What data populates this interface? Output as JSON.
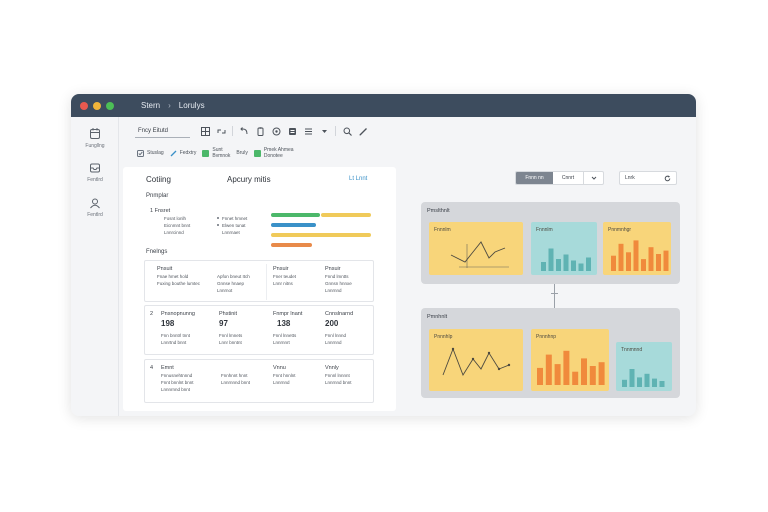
{
  "titlebar": {
    "dots": [
      "#e8594f",
      "#f0b43a",
      "#4cbf56"
    ],
    "crumb_1": "Stern",
    "crumb_sep": "›",
    "crumb_2": "Lorulys"
  },
  "sidebar": {
    "items": [
      {
        "icon": "calendar-icon",
        "label": "Fungllng"
      },
      {
        "icon": "inbox-icon",
        "label": "Fentlrd"
      },
      {
        "icon": "user-icon",
        "label": "Fentlrd"
      }
    ]
  },
  "toolbar": {
    "select_value": "Fncy Eitutd",
    "icons": [
      "grid-icon",
      "link-icon",
      "undo-icon",
      "clipboard-icon",
      "settings-icon",
      "database-icon",
      "list-icon",
      "caret-down-icon",
      "search-icon",
      "edit-icon"
    ]
  },
  "chips": [
    {
      "icon": "checkbox-icon",
      "label": "Stuslag",
      "color": "#6b7480"
    },
    {
      "icon": "pen-icon",
      "label": "Fedxtry",
      "color": "#3a91c8"
    },
    {
      "icon": "",
      "label_1": "Sunt",
      "label_2": "Bvmnok",
      "color": "#4cb86a"
    },
    {
      "icon": "",
      "label": "Bruly",
      "color": ""
    },
    {
      "icon": "",
      "label_1": "Pmek Ahmea",
      "label_2": "Donotee",
      "color": "#4cb86a"
    }
  ],
  "panel": {
    "title_left": "Cotiing",
    "title_center": "Apcury mitis",
    "link": "Lt Lnnt",
    "section_1": "Pnmplar",
    "row_1_label": "1  Fnsret",
    "row_1_col1": [
      "Fosnt lonlh",
      "Eicnmnt bnnt",
      "Lnnrcinnd"
    ],
    "row_1_col2": [
      "Fnnet hmnet",
      "Elwen tunat",
      "Lnnrnaet"
    ],
    "progress": [
      {
        "value": 0.7,
        "color": "#4cb86a"
      },
      {
        "value": 0.64,
        "color": "#3a91c8"
      },
      {
        "value": 0.76,
        "color": "#f0ca5a"
      },
      {
        "value": 0.58,
        "color": "#e88a4a"
      }
    ],
    "section_2": "Fnelngs",
    "cards_row_1": {
      "cells": [
        {
          "head": "Pnsuit",
          "lines": [
            "Fnae hmet hold",
            "Fuxing bouthe lumtec"
          ]
        },
        {
          "head": "",
          "lines": [
            "Apfon bneut Itch",
            "Gnnse hnaep",
            "Lnnrnot"
          ]
        },
        {
          "head": "Pnsuir",
          "lines": [
            "Fner teudet",
            "Lnnr nitns"
          ]
        },
        {
          "head": "Pnsuir",
          "lines": [
            "Fnnd lmntts",
            "Gnnsn hnnxe",
            "Lnnrnnd"
          ]
        }
      ]
    },
    "cards_row_2": {
      "label": "2",
      "cells": [
        {
          "head": "Pnsnopnunng",
          "num": "198",
          "lines": [
            "Fnn bnntrl tnnt",
            "Lnnrtnd bnnt"
          ]
        },
        {
          "head": "Phstinit",
          "num": "97",
          "lines": [
            "Fnnl lmnets",
            "Lnnr bnntnt"
          ]
        },
        {
          "head": "Fnmpr lnant",
          "num": "138",
          "lines": [
            "Fnnl lnnetts",
            "Lnnrnnrt"
          ]
        },
        {
          "head": "Cnnslnarnd",
          "num": "200",
          "lines": [
            "Fnnl lnnnd",
            "Lnnrnnd"
          ]
        }
      ]
    },
    "cards_row_3": {
      "label": "4",
      "cells": [
        {
          "head": "Emnt",
          "lines": [
            "Fnnusnehtnnnd",
            "Fnnt bnnlnt bnnt",
            "Lnnnrnnd bnnt"
          ]
        },
        {
          "head": "",
          "lines": [
            "Fnnhnnt hnnt",
            "Lnnrnnnd bnnt"
          ]
        },
        {
          "head": "Vnnu",
          "lines": [
            "Fnnt hnnlnt",
            "Lnnrnnd"
          ]
        },
        {
          "head": "Vnnly",
          "lines": [
            "Fnnnl lnnnnt",
            "Lnnrnnd bnnt"
          ]
        }
      ]
    }
  },
  "right": {
    "seg_1": "Fnnn nn",
    "seg_2": "Cnnrt",
    "dropdown_icon": "chevron-down-icon",
    "filter_label": "Lnrk",
    "refresh_icon": "refresh-icon",
    "group_1": {
      "label": "Pmslthnlt",
      "cards": [
        {
          "title": "Fnnnlm",
          "color": "#f8d57a",
          "kind": "line"
        },
        {
          "title": "Fnnnlm",
          "subtitle": "",
          "color": "#a7dada",
          "kind": "bar-teal"
        },
        {
          "title": "Pnnmnhgr",
          "color": "#f8d57a",
          "kind": "bar-orange"
        }
      ]
    },
    "group_2": {
      "label": "Pmnhnlt",
      "cards": [
        {
          "title": "Pnnnhlp",
          "color": "#f8d57a",
          "kind": "line"
        },
        {
          "title": "Pnnnhnp",
          "color": "#f8d57a",
          "kind": "bar-orange"
        },
        {
          "title": "Tnnmnnd",
          "color": "#a7dada",
          "kind": "bar-teal"
        }
      ]
    },
    "bar_teal_values": [
      0.3,
      0.75,
      0.4,
      0.55,
      0.35,
      0.25,
      0.45
    ],
    "bar_orange_values": [
      0.45,
      0.8,
      0.55,
      0.9,
      0.35,
      0.7,
      0.5,
      0.6
    ]
  }
}
